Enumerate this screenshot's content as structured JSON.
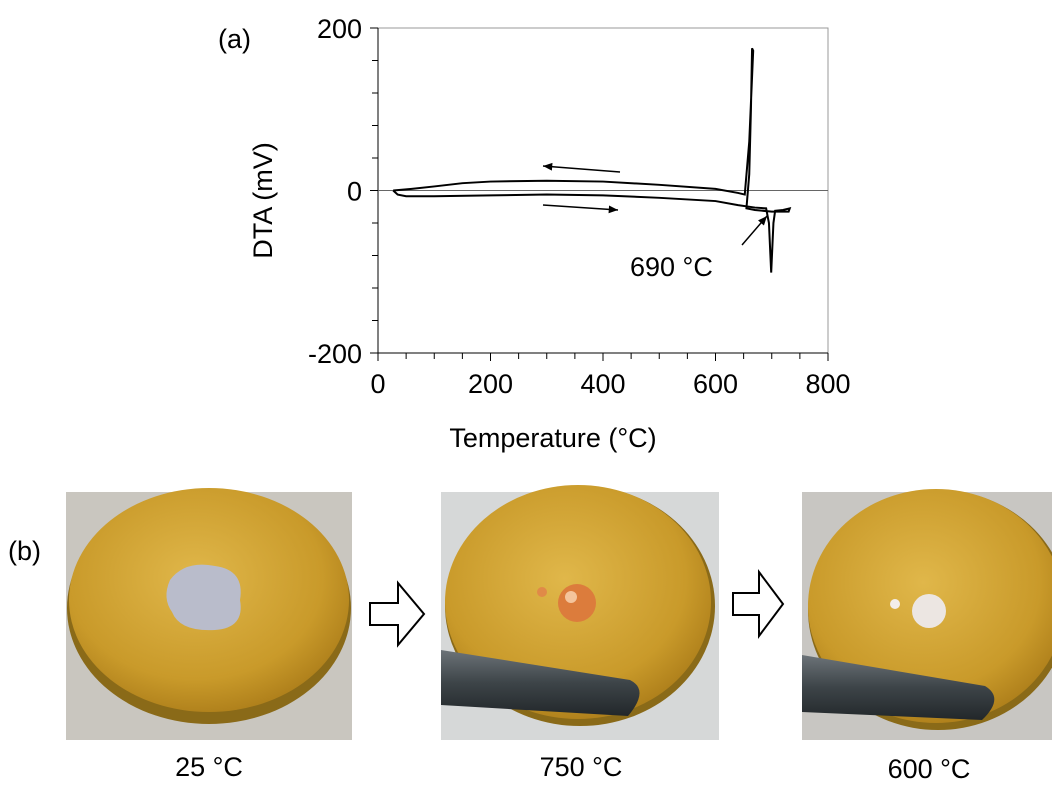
{
  "chart_data": {
    "type": "line",
    "panel_label": "(a)",
    "xlabel": "Temperature (°C)",
    "ylabel": "DTA (mV)",
    "xlim": [
      0,
      800
    ],
    "xticks": [
      0,
      200,
      400,
      600,
      800
    ],
    "ylim": [
      -200,
      200
    ],
    "yticks": [
      -200,
      0,
      200
    ],
    "color": "#000000",
    "annotation": "690 °C",
    "x": [
      27,
      35,
      50,
      100,
      200,
      300,
      400,
      500,
      600,
      640,
      670,
      690,
      695,
      699,
      703,
      706,
      720,
      732,
      730,
      700,
      670,
      655,
      660,
      663,
      665,
      667,
      660,
      652,
      640,
      600,
      500,
      400,
      300,
      200,
      150,
      100,
      60,
      27
    ],
    "values": [
      0,
      -5,
      -7,
      -7,
      -6,
      -5,
      -6,
      -9,
      -13,
      -18,
      -21,
      -22,
      -40,
      -101,
      -40,
      -25,
      -24,
      -22,
      -26,
      -26,
      -24,
      -22,
      20,
      100,
      175,
      172,
      60,
      -5,
      -3,
      2,
      7,
      11,
      12,
      11,
      9,
      5,
      2,
      0
    ]
  },
  "photos": {
    "panel_label": "(b)",
    "captions": [
      "25 °C",
      "750 °C",
      "600 °C"
    ]
  }
}
